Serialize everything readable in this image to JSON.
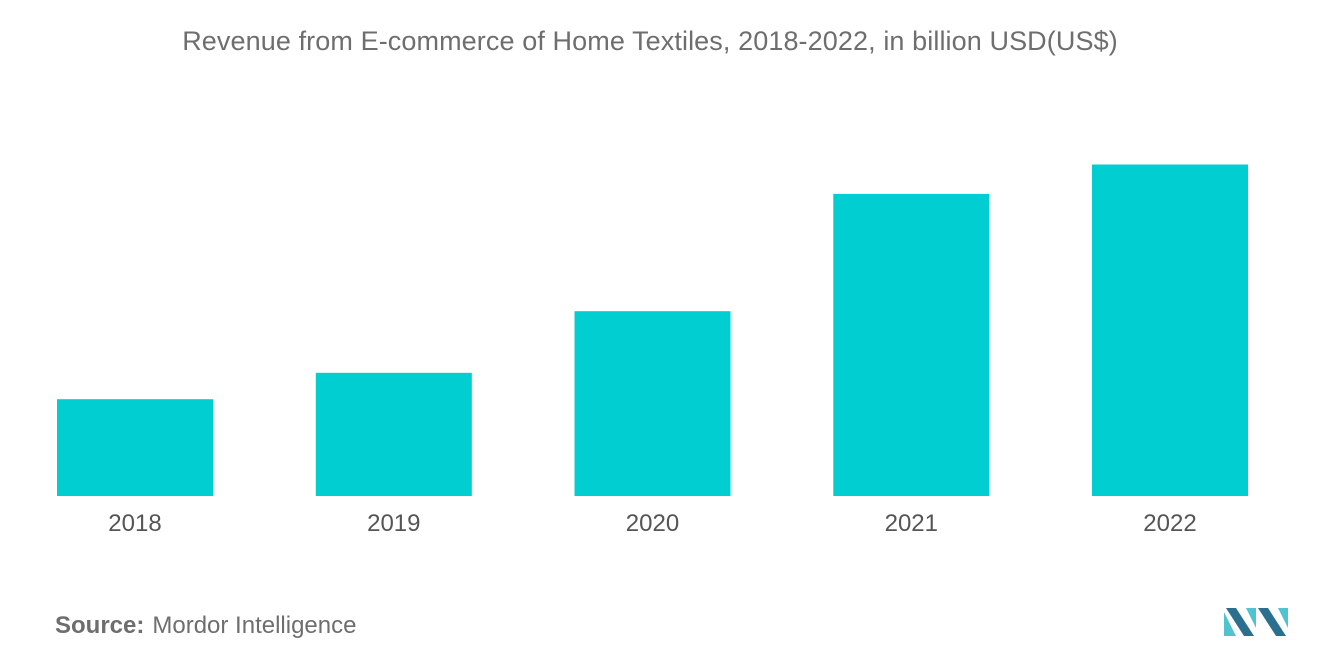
{
  "chart_data": {
    "type": "bar",
    "title": "Revenue from E-commerce of Home Textiles, 2018-2022, in billion USD(US$)",
    "xlabel": "",
    "ylabel": "",
    "categories": [
      "2018",
      "2019",
      "2020",
      "2021",
      "2022"
    ],
    "values": [
      3.3,
      4.2,
      6.3,
      10.3,
      11.3
    ],
    "ylim": [
      0,
      12
    ],
    "grid": false,
    "legend": "none",
    "bar_color": "#00ced1"
  },
  "source": {
    "label": "Source:",
    "text": "Mordor Intelligence"
  },
  "colors": {
    "bar": "#00ced1",
    "logo_dark": "#2b6f8f",
    "logo_light": "#4fc4cf"
  }
}
